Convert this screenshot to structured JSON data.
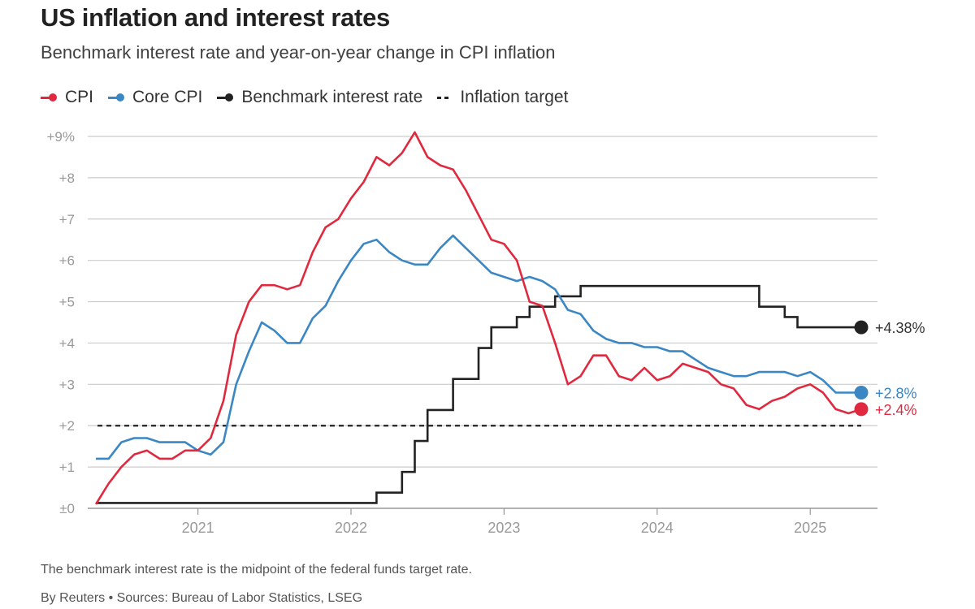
{
  "title": "US inflation and interest rates",
  "subtitle": "Benchmark interest rate and year-on-year change in CPI inflation",
  "legend": {
    "cpi": "CPI",
    "core": "Core CPI",
    "rate": "Benchmark interest rate",
    "target": "Inflation target"
  },
  "footer": {
    "note": "The benchmark interest rate is the midpoint of the federal funds target rate.",
    "source": "By Reuters • Sources: Bureau of Labor Statistics, LSEG"
  },
  "colors": {
    "cpi": "#e0293f",
    "core": "#3b87c4",
    "rate": "#222222",
    "target": "#222222",
    "grid": "#cccccc",
    "axis": "#999999"
  },
  "chart_data": {
    "type": "line",
    "x_start": "2020-05",
    "ylim": [
      0,
      9
    ],
    "y_ticks": [
      "±0",
      "+1",
      "+2",
      "+3",
      "+4",
      "+5",
      "+6",
      "+7",
      "+8",
      "+9%"
    ],
    "x_ticks": [
      {
        "label": "2021",
        "date": "2021-01"
      },
      {
        "label": "2022",
        "date": "2022-01"
      },
      {
        "label": "2023",
        "date": "2023-01"
      },
      {
        "label": "2024",
        "date": "2024-01"
      },
      {
        "label": "2025",
        "date": "2025-01"
      }
    ],
    "grid": true,
    "legend_position": "top-left",
    "target_value": 2,
    "series": [
      {
        "name": "CPI",
        "end_label": "+2.4%",
        "values": [
          0.1,
          0.6,
          1.0,
          1.3,
          1.4,
          1.2,
          1.2,
          1.4,
          1.4,
          1.7,
          2.6,
          4.2,
          5.0,
          5.4,
          5.4,
          5.3,
          5.4,
          6.2,
          6.8,
          7.0,
          7.5,
          7.9,
          8.5,
          8.3,
          8.6,
          9.1,
          8.5,
          8.3,
          8.2,
          7.7,
          7.1,
          6.5,
          6.4,
          6.0,
          5.0,
          4.9,
          4.0,
          3.0,
          3.2,
          3.7,
          3.7,
          3.2,
          3.1,
          3.4,
          3.1,
          3.2,
          3.5,
          3.4,
          3.3,
          3.0,
          2.9,
          2.5,
          2.4,
          2.6,
          2.7,
          2.9,
          3.0,
          2.8,
          2.4,
          2.3,
          2.4
        ]
      },
      {
        "name": "Core CPI",
        "end_label": "+2.8%",
        "values": [
          1.2,
          1.2,
          1.6,
          1.7,
          1.7,
          1.6,
          1.6,
          1.6,
          1.4,
          1.3,
          1.6,
          3.0,
          3.8,
          4.5,
          4.3,
          4.0,
          4.0,
          4.6,
          4.9,
          5.5,
          6.0,
          6.4,
          6.5,
          6.2,
          6.0,
          5.9,
          5.9,
          6.3,
          6.6,
          6.3,
          6.0,
          5.7,
          5.6,
          5.5,
          5.6,
          5.5,
          5.3,
          4.8,
          4.7,
          4.3,
          4.1,
          4.0,
          4.0,
          3.9,
          3.9,
          3.8,
          3.8,
          3.6,
          3.4,
          3.3,
          3.2,
          3.2,
          3.3,
          3.3,
          3.3,
          3.2,
          3.3,
          3.1,
          2.8,
          2.8,
          2.8
        ]
      },
      {
        "name": "Benchmark interest rate",
        "end_label": "+4.38%",
        "values": [
          0.13,
          0.13,
          0.13,
          0.13,
          0.13,
          0.13,
          0.13,
          0.13,
          0.13,
          0.13,
          0.13,
          0.13,
          0.13,
          0.13,
          0.13,
          0.13,
          0.13,
          0.13,
          0.13,
          0.13,
          0.13,
          0.13,
          0.38,
          0.38,
          0.88,
          1.63,
          2.38,
          2.38,
          3.13,
          3.13,
          3.88,
          4.38,
          4.38,
          4.63,
          4.88,
          4.88,
          5.13,
          5.13,
          5.38,
          5.38,
          5.38,
          5.38,
          5.38,
          5.38,
          5.38,
          5.38,
          5.38,
          5.38,
          5.38,
          5.38,
          5.38,
          5.38,
          4.88,
          4.88,
          4.63,
          4.38,
          4.38,
          4.38,
          4.38,
          4.38,
          4.38
        ]
      }
    ]
  }
}
